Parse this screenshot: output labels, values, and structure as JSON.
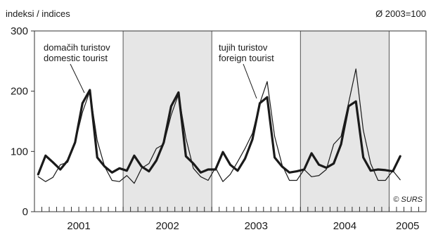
{
  "chart_data": {
    "type": "line",
    "title": "",
    "y_axis_label": "indeksi / indices",
    "base_note": "Ø 2003=100",
    "copyright": "© SURS",
    "ylim": [
      0,
      300
    ],
    "y_ticks": [
      "0",
      "100",
      "200",
      "300"
    ],
    "y_tick_values": [
      0,
      100,
      200,
      300
    ],
    "grid": false,
    "panel_color": "#e6e6e6",
    "start": "2001-01",
    "months_per_tick": 1,
    "years": [
      "2001",
      "2002",
      "2003",
      "2004",
      "2005"
    ],
    "series": [
      {
        "name": "domačih turistov / domestic tourist",
        "label_lines": [
          "domačih turistov",
          "domestic tourist"
        ],
        "style": "thick",
        "color": "#1a1a1a",
        "values": [
          62,
          93,
          82,
          70,
          85,
          115,
          180,
          202,
          90,
          75,
          65,
          72,
          68,
          93,
          75,
          67,
          85,
          115,
          175,
          198,
          92,
          80,
          65,
          70,
          70,
          99,
          78,
          68,
          88,
          120,
          180,
          190,
          90,
          75,
          65,
          67,
          70,
          97,
          78,
          73,
          80,
          112,
          175,
          183,
          90,
          68,
          70,
          69,
          67,
          92
        ]
      },
      {
        "name": "tujih turistov / foreign tourist",
        "label_lines": [
          "tujih turistov",
          "foreign tourist"
        ],
        "style": "thin",
        "color": "#1a1a1a",
        "values": [
          58,
          50,
          57,
          78,
          82,
          115,
          165,
          200,
          118,
          75,
          52,
          50,
          60,
          47,
          72,
          80,
          105,
          112,
          160,
          195,
          122,
          72,
          58,
          52,
          73,
          50,
          62,
          83,
          105,
          130,
          180,
          216,
          125,
          78,
          52,
          52,
          70,
          58,
          60,
          70,
          112,
          125,
          180,
          237,
          135,
          80,
          52,
          52,
          68,
          53
        ]
      }
    ]
  }
}
